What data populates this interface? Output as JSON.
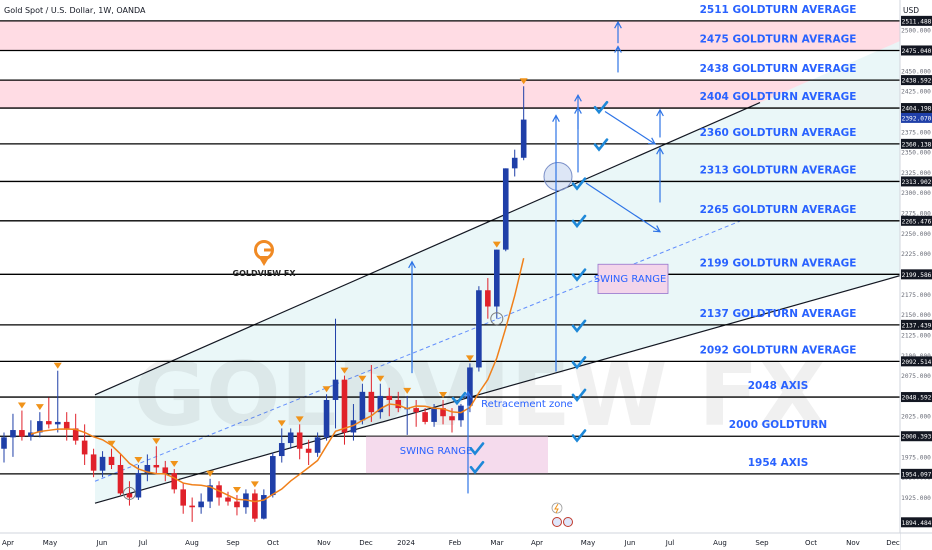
{
  "header": {
    "title": "Gold Spot / U.S. Dollar, 1W, OANDA",
    "currency": "USD"
  },
  "brand": {
    "name": "GOLDVIEW FX",
    "watermark": "GOLDVIEW FX"
  },
  "colors": {
    "bull": "#1f3fa8",
    "bear": "#e0212a",
    "level_line": "#000000",
    "level_text": "#2962ff",
    "zone_pink": "#ffd6df",
    "channel_fill": "#e8f6f7",
    "swing_fill": "#f3d5ea",
    "ma": "#f0801a",
    "marker": "#f0931a",
    "check": "#1e88d8",
    "arrow": "#2e74e6",
    "logo": "#f08a24"
  },
  "chart_data": {
    "type": "candlestick",
    "title": "Gold Spot / U.S. Dollar, 1W, OANDA",
    "ylim": [
      1885,
      2515
    ],
    "grid": false,
    "y_ticks": [
      1925,
      1950,
      1975,
      2025,
      2050,
      2075,
      2100,
      2125,
      2150,
      2175,
      2225,
      2250,
      2275,
      2300,
      2325,
      2350,
      2375,
      2400,
      2425,
      2450,
      2500
    ],
    "x_ticks": [
      "Apr",
      "May",
      "Jun",
      "Jul",
      "Aug",
      "Sep",
      "Oct",
      "Nov",
      "Dec",
      "2024",
      "Feb",
      "Mar",
      "Apr",
      "May",
      "Jun",
      "Jul",
      "Aug",
      "Sep",
      "Oct",
      "Nov",
      "Dec"
    ],
    "price_labels": [
      {
        "value": 2511.488,
        "text": "2511.488"
      },
      {
        "value": 2475.04,
        "text": "2475.040"
      },
      {
        "value": 2438.592,
        "text": "2438.592"
      },
      {
        "value": 2404.198,
        "text": "2404.198"
      },
      {
        "value": 2392.07,
        "text": "2392.070",
        "current": true
      },
      {
        "value": 2360.138,
        "text": "2360.138"
      },
      {
        "value": 2313.902,
        "text": "2313.902"
      },
      {
        "value": 2265.476,
        "text": "2265.476"
      },
      {
        "value": 2199.586,
        "text": "2199.586"
      },
      {
        "value": 2137.439,
        "text": "2137.439"
      },
      {
        "value": 2092.514,
        "text": "2092.514"
      },
      {
        "value": 2048.592,
        "text": "2048.592"
      },
      {
        "value": 2000.393,
        "text": "2000.393"
      },
      {
        "value": 1954.097,
        "text": "1954.097"
      },
      {
        "value": 1894.484,
        "text": "1894.484"
      }
    ],
    "levels": [
      {
        "value": 2511.488,
        "label": "2511 GOLDTURN AVERAGE"
      },
      {
        "value": 2475.04,
        "label": "2475 GOLDTURN AVERAGE"
      },
      {
        "value": 2438.592,
        "label": "2438 GOLDTURN AVERAGE"
      },
      {
        "value": 2404.198,
        "label": "2404 GOLDTURN AVERAGE"
      },
      {
        "value": 2360.138,
        "label": "2360 GOLDTURN AVERAGE"
      },
      {
        "value": 2313.902,
        "label": "2313 GOLDTURN AVERAGE"
      },
      {
        "value": 2265.476,
        "label": "2265 GOLDTURN AVERAGE"
      },
      {
        "value": 2199.586,
        "label": "2199 GOLDTURN AVERAGE"
      },
      {
        "value": 2137.439,
        "label": "2137 GOLDTURN AVERAGE"
      },
      {
        "value": 2092.514,
        "label": "2092 GOLDTURN AVERAGE"
      },
      {
        "value": 2048.592,
        "label": "2048 AXIS"
      },
      {
        "value": 2000.393,
        "label": "2000 GOLDTURN"
      },
      {
        "value": 1954.097,
        "label": "1954 AXIS"
      }
    ],
    "zones": [
      {
        "from": 2475.04,
        "to": 2511.488
      },
      {
        "from": 2404.198,
        "to": 2438.592
      }
    ],
    "annotations": [
      {
        "text": "SWING RANGE",
        "price": 2194
      },
      {
        "text": "SWING RANGE",
        "price": 1982
      },
      {
        "text": "Retracement zone",
        "price": 2040
      }
    ],
    "candles": [
      {
        "o": 1985,
        "h": 2005,
        "l": 1968,
        "c": 1999
      },
      {
        "o": 1999,
        "h": 2028,
        "l": 1975,
        "c": 2008
      },
      {
        "o": 2008,
        "h": 2032,
        "l": 1995,
        "c": 2000
      },
      {
        "o": 2000,
        "h": 2020,
        "l": 1995,
        "c": 2005
      },
      {
        "o": 2005,
        "h": 2030,
        "l": 1999,
        "c": 2019
      },
      {
        "o": 2019,
        "h": 2048,
        "l": 2010,
        "c": 2015
      },
      {
        "o": 2015,
        "h": 2081,
        "l": 2005,
        "c": 2018
      },
      {
        "o": 2018,
        "h": 2030,
        "l": 1995,
        "c": 2010
      },
      {
        "o": 2010,
        "h": 2028,
        "l": 1990,
        "c": 1995
      },
      {
        "o": 1995,
        "h": 2015,
        "l": 1965,
        "c": 1978
      },
      {
        "o": 1978,
        "h": 1985,
        "l": 1950,
        "c": 1958
      },
      {
        "o": 1958,
        "h": 1982,
        "l": 1950,
        "c": 1975
      },
      {
        "o": 1975,
        "h": 1985,
        "l": 1960,
        "c": 1965
      },
      {
        "o": 1965,
        "h": 1978,
        "l": 1928,
        "c": 1930
      },
      {
        "o": 1930,
        "h": 1945,
        "l": 1915,
        "c": 1925
      },
      {
        "o": 1925,
        "h": 1965,
        "l": 1922,
        "c": 1955
      },
      {
        "o": 1955,
        "h": 1978,
        "l": 1945,
        "c": 1965
      },
      {
        "o": 1965,
        "h": 1988,
        "l": 1955,
        "c": 1962
      },
      {
        "o": 1962,
        "h": 1970,
        "l": 1945,
        "c": 1955
      },
      {
        "o": 1955,
        "h": 1960,
        "l": 1930,
        "c": 1935
      },
      {
        "o": 1935,
        "h": 1943,
        "l": 1905,
        "c": 1915
      },
      {
        "o": 1915,
        "h": 1925,
        "l": 1895,
        "c": 1913
      },
      {
        "o": 1913,
        "h": 1930,
        "l": 1905,
        "c": 1920
      },
      {
        "o": 1920,
        "h": 1948,
        "l": 1912,
        "c": 1940
      },
      {
        "o": 1940,
        "h": 1945,
        "l": 1915,
        "c": 1925
      },
      {
        "o": 1925,
        "h": 1932,
        "l": 1915,
        "c": 1920
      },
      {
        "o": 1920,
        "h": 1928,
        "l": 1903,
        "c": 1913
      },
      {
        "o": 1913,
        "h": 1935,
        "l": 1905,
        "c": 1930
      },
      {
        "o": 1930,
        "h": 1935,
        "l": 1895,
        "c": 1899
      },
      {
        "o": 1899,
        "h": 1935,
        "l": 1898,
        "c": 1928
      },
      {
        "o": 1928,
        "h": 1980,
        "l": 1925,
        "c": 1976
      },
      {
        "o": 1976,
        "h": 2010,
        "l": 1968,
        "c": 1992
      },
      {
        "o": 1992,
        "h": 2010,
        "l": 1985,
        "c": 2005
      },
      {
        "o": 2005,
        "h": 2015,
        "l": 1972,
        "c": 1985
      },
      {
        "o": 1985,
        "h": 1996,
        "l": 1965,
        "c": 1980
      },
      {
        "o": 1980,
        "h": 2005,
        "l": 1975,
        "c": 1999
      },
      {
        "o": 1999,
        "h": 2052,
        "l": 1995,
        "c": 2045
      },
      {
        "o": 2045,
        "h": 2145,
        "l": 2010,
        "c": 2070
      },
      {
        "o": 2070,
        "h": 2075,
        "l": 1990,
        "c": 2005
      },
      {
        "o": 2005,
        "h": 2040,
        "l": 1995,
        "c": 2020
      },
      {
        "o": 2020,
        "h": 2065,
        "l": 2015,
        "c": 2055
      },
      {
        "o": 2055,
        "h": 2088,
        "l": 2018,
        "c": 2030
      },
      {
        "o": 2030,
        "h": 2065,
        "l": 2022,
        "c": 2050
      },
      {
        "o": 2050,
        "h": 2060,
        "l": 2025,
        "c": 2045
      },
      {
        "o": 2045,
        "h": 2055,
        "l": 2030,
        "c": 2035
      },
      {
        "o": 2035,
        "h": 2050,
        "l": 2002,
        "c": 2035
      },
      {
        "o": 2035,
        "h": 2045,
        "l": 2012,
        "c": 2030
      },
      {
        "o": 2030,
        "h": 2035,
        "l": 2015,
        "c": 2018
      },
      {
        "o": 2018,
        "h": 2040,
        "l": 2012,
        "c": 2035
      },
      {
        "o": 2035,
        "h": 2045,
        "l": 2015,
        "c": 2025
      },
      {
        "o": 2025,
        "h": 2035,
        "l": 2005,
        "c": 2020
      },
      {
        "o": 2020,
        "h": 2040,
        "l": 2012,
        "c": 2038
      },
      {
        "o": 2038,
        "h": 2090,
        "l": 2030,
        "c": 2085
      },
      {
        "o": 2085,
        "h": 2185,
        "l": 2080,
        "c": 2180
      },
      {
        "o": 2180,
        "h": 2195,
        "l": 2145,
        "c": 2160
      },
      {
        "o": 2160,
        "h": 2230,
        "l": 2145,
        "c": 2230
      },
      {
        "o": 2230,
        "h": 2330,
        "l": 2228,
        "c": 2330
      },
      {
        "o": 2330,
        "h": 2353,
        "l": 2320,
        "c": 2343
      },
      {
        "o": 2343,
        "h": 2431,
        "l": 2340,
        "c": 2390
      }
    ]
  }
}
